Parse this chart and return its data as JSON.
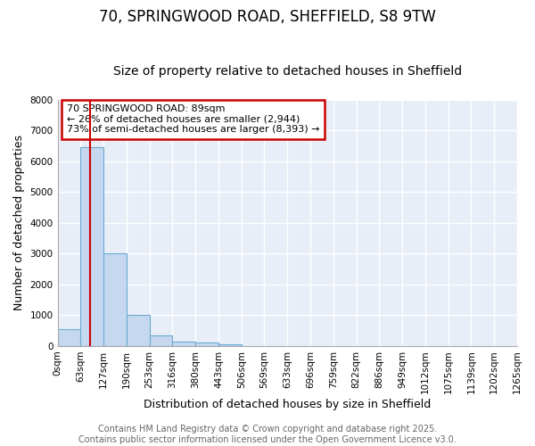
{
  "title_line1": "70, SPRINGWOOD ROAD, SHEFFIELD, S8 9TW",
  "title_line2": "Size of property relative to detached houses in Sheffield",
  "xlabel": "Distribution of detached houses by size in Sheffield",
  "ylabel": "Number of detached properties",
  "bar_values": [
    550,
    6450,
    3000,
    1000,
    350,
    150,
    100,
    50,
    0,
    0,
    0,
    0,
    0,
    0,
    0,
    0,
    0,
    0,
    0,
    0
  ],
  "bin_labels": [
    "0sqm",
    "63sqm",
    "127sqm",
    "190sqm",
    "253sqm",
    "316sqm",
    "380sqm",
    "443sqm",
    "506sqm",
    "569sqm",
    "633sqm",
    "696sqm",
    "759sqm",
    "822sqm",
    "886sqm",
    "949sqm",
    "1012sqm",
    "1075sqm",
    "1139sqm",
    "1202sqm",
    "1265sqm"
  ],
  "bar_color": "#c5d8f0",
  "bar_edge_color": "#6aaad4",
  "plot_bg_color": "#e8eef8",
  "fig_bg_color": "#ffffff",
  "ylim": [
    0,
    8000
  ],
  "yticks": [
    0,
    1000,
    2000,
    3000,
    4000,
    5000,
    6000,
    7000,
    8000
  ],
  "vline_x": 1.41,
  "vline_color": "#cc0000",
  "annotation_text": "70 SPRINGWOOD ROAD: 89sqm\n← 26% of detached houses are smaller (2,944)\n73% of semi-detached houses are larger (8,393) →",
  "annotation_box_color": "#cc0000",
  "footer_line1": "Contains HM Land Registry data © Crown copyright and database right 2025.",
  "footer_line2": "Contains public sector information licensed under the Open Government Licence v3.0.",
  "grid_color": "#ffffff",
  "title_fontsize": 12,
  "subtitle_fontsize": 10,
  "axis_label_fontsize": 9,
  "tick_fontsize": 7.5,
  "footer_fontsize": 7,
  "annot_fontsize": 8
}
